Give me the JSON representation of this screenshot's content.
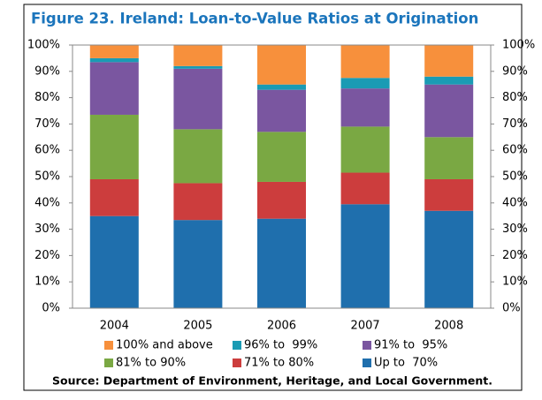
{
  "chart_data": {
    "type": "stacked_bar",
    "title": "Figure 23. Ireland: Loan-to-Value Ratios at Origination",
    "source": "Source: Department of Environment, Heritage, and Local Government.",
    "categories": [
      "2004",
      "2005",
      "2006",
      "2007",
      "2008"
    ],
    "series": [
      {
        "name": "Up to  70%",
        "color": "#1f6fad",
        "values": [
          35,
          33.5,
          34,
          39.5,
          37
        ]
      },
      {
        "name": "71% to 80%",
        "color": "#cc3d3d",
        "values": [
          14,
          14,
          14,
          12,
          12
        ]
      },
      {
        "name": "81% to 90%",
        "color": "#7aa843",
        "values": [
          24.5,
          20.5,
          19,
          17.5,
          16
        ]
      },
      {
        "name": "91% to  95%",
        "color": "#7a56a0",
        "values": [
          20,
          23,
          16,
          14.5,
          20
        ]
      },
      {
        "name": "96% to  99%",
        "color": "#1a9bb4",
        "values": [
          1.5,
          1,
          2,
          4,
          3
        ]
      },
      {
        "name": "100% and above",
        "color": "#f7903c",
        "values": [
          5,
          8,
          15,
          12.5,
          12
        ]
      }
    ],
    "ylim": [
      0,
      100
    ],
    "yticks": [
      {
        "value": 0,
        "label": "0%"
      },
      {
        "value": 10,
        "label": "10%"
      },
      {
        "value": 20,
        "label": "20%"
      },
      {
        "value": 30,
        "label": "30%"
      },
      {
        "value": 40,
        "label": "40%"
      },
      {
        "value": 50,
        "label": "50%"
      },
      {
        "value": 60,
        "label": "60%"
      },
      {
        "value": 70,
        "label": "70%"
      },
      {
        "value": 80,
        "label": "80%"
      },
      {
        "value": 90,
        "label": "90%"
      },
      {
        "value": 100,
        "label": "100%"
      }
    ],
    "y2lim": [
      0,
      100
    ],
    "y2ticks": [
      {
        "value": 0,
        "label": "0%"
      },
      {
        "value": 10,
        "label": "10%"
      },
      {
        "value": 20,
        "label": "20%"
      },
      {
        "value": 30,
        "label": "30%"
      },
      {
        "value": 40,
        "label": "40%"
      },
      {
        "value": 50,
        "label": "50%"
      },
      {
        "value": 60,
        "label": "60%"
      },
      {
        "value": 70,
        "label": "70%"
      },
      {
        "value": 80,
        "label": "80%"
      },
      {
        "value": 90,
        "label": "90%"
      },
      {
        "value": 100,
        "label": "100%"
      }
    ],
    "grid": false
  }
}
